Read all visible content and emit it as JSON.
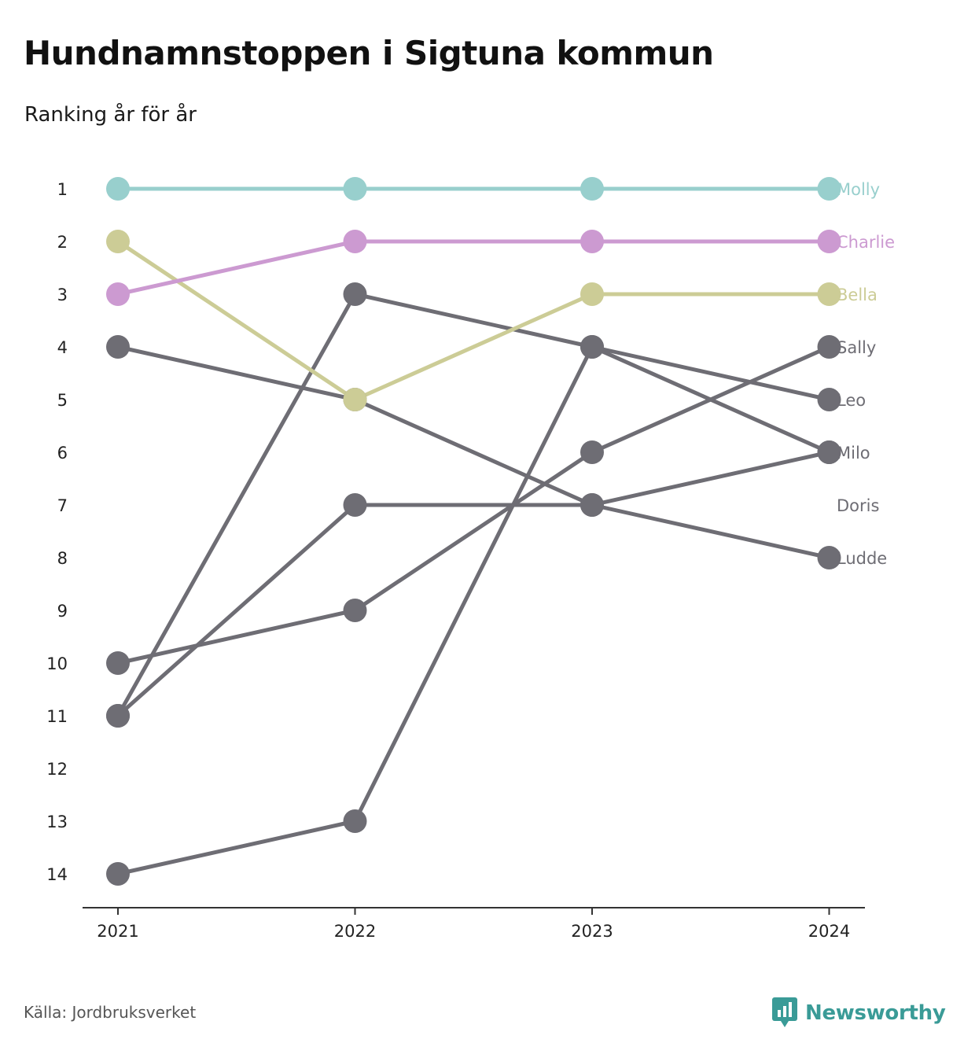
{
  "title": "Hundnamnstoppen i Sigtuna kommun",
  "subtitle": "Ranking år för år",
  "source": "Källa: Jordbruksverket",
  "brand": "Newsworthy",
  "colors": {
    "molly": "#98cfcd",
    "charlie": "#cc9ad1",
    "bella": "#cccc96",
    "default": "#6e6d74",
    "axis": "#333333",
    "brand": "#3a9b97"
  },
  "chart_data": {
    "type": "line",
    "subtype": "bump",
    "x": [
      "2021",
      "2022",
      "2023",
      "2024"
    ],
    "y_ticks": [
      1,
      2,
      3,
      4,
      5,
      6,
      7,
      8,
      9,
      10,
      11,
      12,
      13,
      14
    ],
    "y_reversed": true,
    "ylim": [
      1,
      14
    ],
    "grid": false,
    "series": [
      {
        "name": "Ludde",
        "color": "#6e6d74",
        "values": [
          4,
          5,
          7,
          8
        ]
      },
      {
        "name": "Doris",
        "color": "#6e6d74",
        "values": [
          14,
          13,
          4,
          6
        ]
      },
      {
        "name": "Milo",
        "color": "#6e6d74",
        "values": [
          11,
          7,
          7,
          6
        ]
      },
      {
        "name": "Leo",
        "color": "#6e6d74",
        "values": [
          11,
          3,
          4,
          5
        ]
      },
      {
        "name": "Sally",
        "color": "#6e6d74",
        "values": [
          10,
          9,
          6,
          4
        ]
      },
      {
        "name": "Bella",
        "color": "#cccc96",
        "values": [
          2,
          5,
          3,
          3
        ]
      },
      {
        "name": "Charlie",
        "color": "#cc9ad1",
        "values": [
          3,
          2,
          2,
          2
        ]
      },
      {
        "name": "Molly",
        "color": "#98cfcd",
        "values": [
          1,
          1,
          1,
          1
        ]
      }
    ],
    "end_labels": [
      {
        "name": "Molly",
        "rank": 1,
        "color": "#98cfcd"
      },
      {
        "name": "Charlie",
        "rank": 2,
        "color": "#cc9ad1"
      },
      {
        "name": "Bella",
        "rank": 3,
        "color": "#cccc96"
      },
      {
        "name": "Sally",
        "rank": 4,
        "color": "#6e6d74"
      },
      {
        "name": "Leo",
        "rank": 5,
        "color": "#6e6d74"
      },
      {
        "name": "Milo",
        "rank": 6,
        "color": "#6e6d74"
      },
      {
        "name": "Doris",
        "rank": 7,
        "color": "#6e6d74"
      },
      {
        "name": "Ludde",
        "rank": 8,
        "color": "#6e6d74"
      }
    ]
  }
}
